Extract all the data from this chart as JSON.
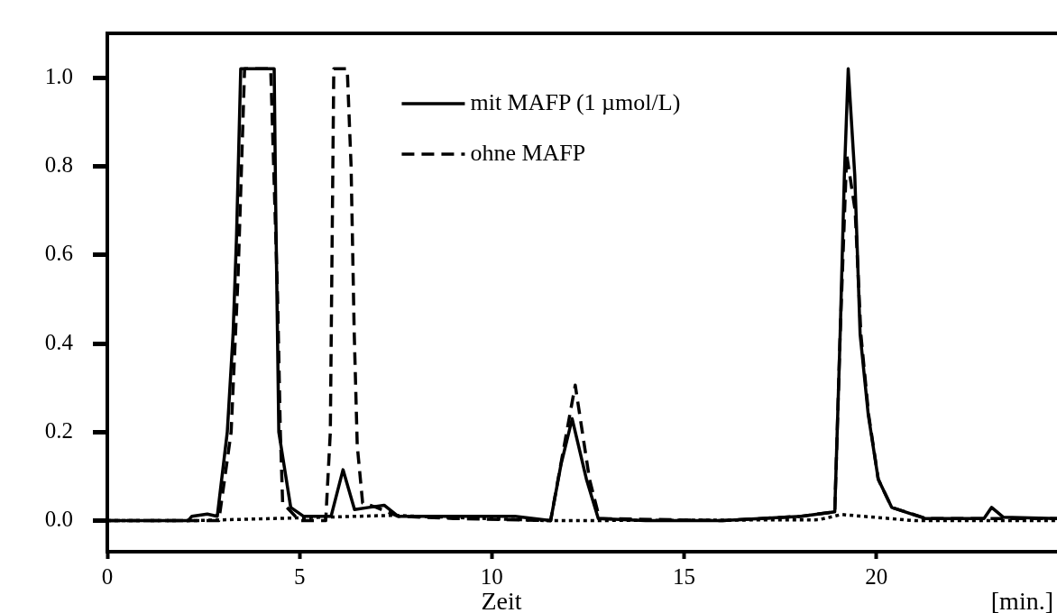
{
  "chart_data": {
    "type": "line",
    "xlabel": "Zeit",
    "annotations": [
      "[min.]"
    ],
    "xlim": [
      0,
      24.7
    ],
    "ylim": [
      -0.07,
      1.1
    ],
    "xticks": [
      0,
      5,
      10,
      15,
      20
    ],
    "yticks": [
      {
        "value": 0,
        "label": "0.0"
      },
      {
        "value": 0.2,
        "label": "0.2"
      },
      {
        "value": 0.4,
        "label": "0.4"
      },
      {
        "value": 0.6,
        "label": "0.6"
      },
      {
        "value": 0.8,
        "label": "0.8"
      },
      {
        "value": 1,
        "label": "1.0"
      }
    ],
    "grid": false,
    "legend": "top",
    "marker": "none",
    "series": [
      {
        "name": "mit MAFP (1 µmol/L)",
        "color": "#000000",
        "line_style": "solid",
        "x": [
          0,
          2.1,
          2.2,
          2.6,
          2.86,
          3.12,
          3.27,
          3.36,
          3.47,
          4.34,
          4.38,
          4.46,
          4.77,
          5.1,
          5.82,
          6.13,
          6.43,
          6.8,
          7.2,
          7.56,
          8.3,
          9.5,
          10.6,
          11.53,
          11.8,
          12.09,
          12.46,
          12.77,
          14,
          16,
          18.05,
          18.92,
          19.06,
          19.17,
          19.27,
          19.44,
          19.58,
          19.79,
          20.05,
          20.4,
          21.27,
          22.8,
          23.0,
          23.3,
          24.7
        ],
        "values": [
          0,
          0,
          0.01,
          0.015,
          0.01,
          0.2,
          0.42,
          0.64,
          1.02,
          1.02,
          0.71,
          0.2,
          0.03,
          0.01,
          0.01,
          0.115,
          0.025,
          0.03,
          0.035,
          0.01,
          0.01,
          0.01,
          0.01,
          0.0,
          0.127,
          0.23,
          0.094,
          0.005,
          0.0,
          0.0,
          0.01,
          0.02,
          0.42,
          0.78,
          1.02,
          0.78,
          0.42,
          0.24,
          0.094,
          0.03,
          0.005,
          0.005,
          0.03,
          0.008,
          0.005
        ]
      },
      {
        "name": "ohne MAFP",
        "color": "#000000",
        "line_style": "dashed",
        "x": [
          0,
          2.9,
          3.22,
          3.4,
          3.57,
          4.25,
          4.43,
          4.5,
          4.56,
          5.0,
          5.68,
          5.8,
          5.89,
          6.24,
          6.34,
          6.42,
          6.5,
          6.64,
          7.0,
          7.56,
          9,
          11.53,
          11.8,
          12.17,
          12.54,
          12.8,
          16,
          18.05,
          18.92,
          19.06,
          19.23,
          19.45,
          19.6,
          19.8,
          20.05,
          20.4,
          21.3,
          24.7
        ],
        "values": [
          0,
          0,
          0.2,
          0.55,
          1.02,
          1.02,
          0.5,
          0.2,
          0.04,
          0.0,
          0.0,
          0.2,
          1.02,
          1.02,
          0.8,
          0.43,
          0.17,
          0.04,
          0.03,
          0.01,
          0.005,
          0.0,
          0.13,
          0.306,
          0.094,
          0.005,
          0.0,
          0.01,
          0.02,
          0.42,
          0.826,
          0.7,
          0.42,
          0.24,
          0.094,
          0.03,
          0.005,
          0.005
        ]
      },
      {
        "color": "#000000",
        "line_style": "dotted",
        "x": [
          0,
          2.2,
          7.4,
          11.5,
          18.5,
          19.1,
          21,
          24.7
        ],
        "values": [
          0,
          0,
          0.012,
          0,
          0.002,
          0.014,
          0,
          0
        ]
      }
    ]
  }
}
